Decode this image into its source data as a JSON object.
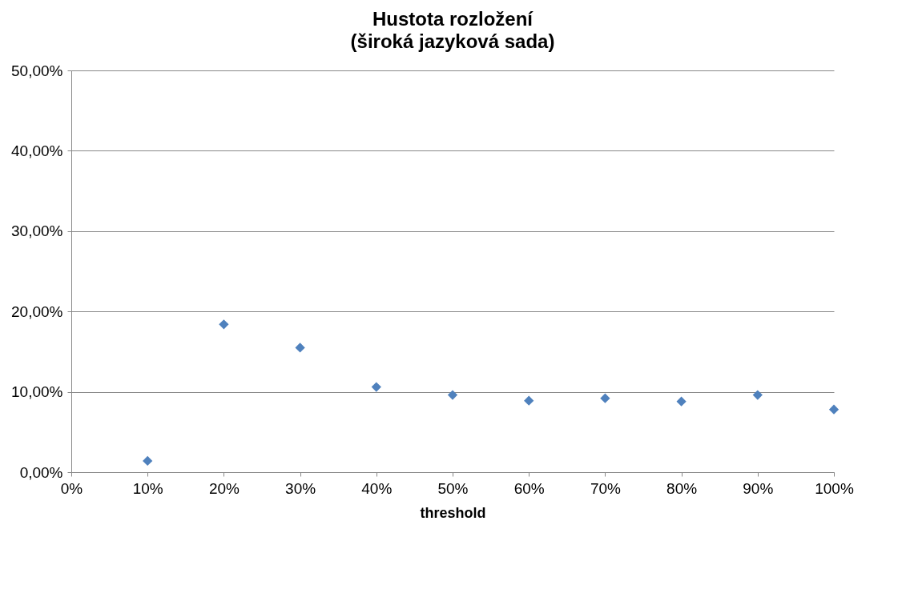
{
  "chart_data": {
    "type": "scatter",
    "title": "Hustota rozložení",
    "subtitle": "(široká jazyková sada)",
    "xlabel": "threshold",
    "x": [
      10,
      20,
      30,
      40,
      50,
      60,
      70,
      80,
      90,
      100
    ],
    "series": [
      {
        "color": "#4f81bd",
        "values": [
          1.4,
          18.4,
          15.5,
          10.6,
          9.6,
          8.9,
          9.2,
          8.8,
          9.6,
          7.8
        ]
      }
    ],
    "xlim": [
      0,
      100
    ],
    "xticks": [
      {
        "value": 0,
        "label": "0%"
      },
      {
        "value": 10,
        "label": "10%"
      },
      {
        "value": 20,
        "label": "20%"
      },
      {
        "value": 30,
        "label": "30%"
      },
      {
        "value": 40,
        "label": "40%"
      },
      {
        "value": 50,
        "label": "50%"
      },
      {
        "value": 60,
        "label": "60%"
      },
      {
        "value": 70,
        "label": "70%"
      },
      {
        "value": 80,
        "label": "80%"
      },
      {
        "value": 90,
        "label": "90%"
      },
      {
        "value": 100,
        "label": "100%"
      }
    ],
    "ylim": [
      0,
      50
    ],
    "yticks": [
      {
        "value": 0,
        "label": "0,00%"
      },
      {
        "value": 10,
        "label": "10,00%"
      },
      {
        "value": 20,
        "label": "20,00%"
      },
      {
        "value": 30,
        "label": "30,00%"
      },
      {
        "value": 40,
        "label": "40,00%"
      },
      {
        "value": 50,
        "label": "50,00%"
      }
    ],
    "grid": "y",
    "marker": "diamond"
  }
}
